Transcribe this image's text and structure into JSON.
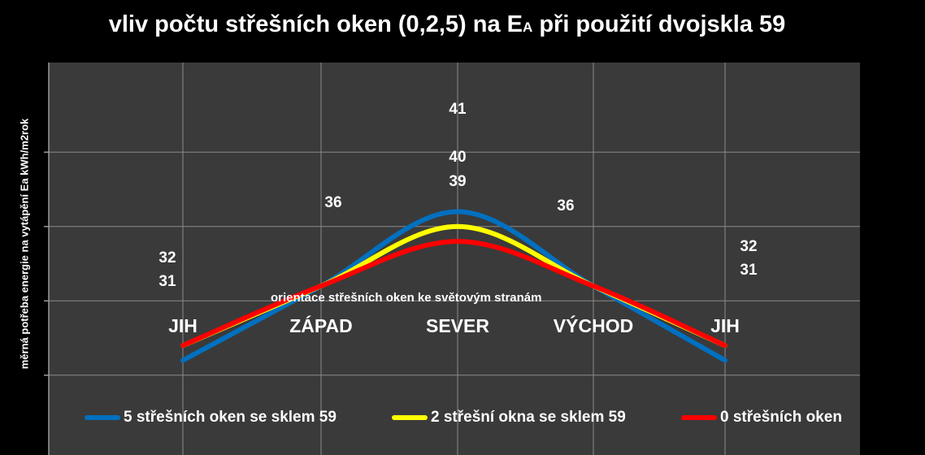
{
  "chart_data": {
    "type": "line",
    "title_main": "vliv počtu střešních oken (0,2,5) na E",
    "title_sub": "A",
    "title_tail": " při použití dvojskla 59",
    "xlabel": "orientace  střešních oken ke světovým stranám",
    "ylabel": "měrná potřeba  energie na vytápění  Ea kWh/m2rok",
    "categories": [
      "JIH",
      "ZÁPAD",
      "SEVER",
      "VÝCHOD",
      "JIH"
    ],
    "ylim": [
      26,
      45
    ],
    "grid": true,
    "smooth": true,
    "legend_position": "bottom",
    "series": [
      {
        "name": "5 střešních oken se sklem 59",
        "color": "#0070c0",
        "values": [
          31,
          36,
          41,
          36,
          31
        ]
      },
      {
        "name": "2 střešní okna se sklem  59",
        "color": "#ffff00",
        "values": [
          32,
          36,
          40,
          36,
          32
        ]
      },
      {
        "name": "0 střešních oken",
        "color": "#ff0000",
        "values": [
          32,
          36,
          39,
          36,
          32
        ]
      }
    ],
    "data_labels": [
      "31",
      "32",
      "36",
      "41",
      "40",
      "39",
      "36",
      "32",
      "31"
    ]
  }
}
